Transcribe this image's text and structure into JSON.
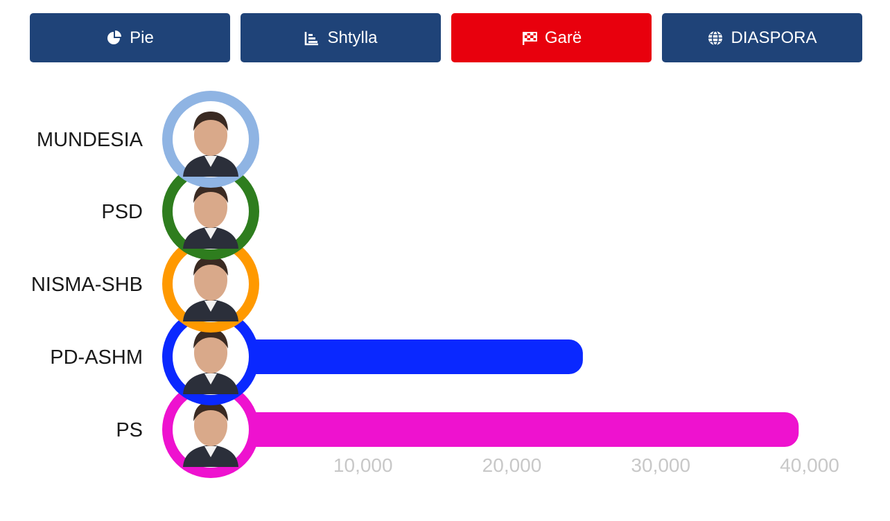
{
  "tabs": [
    {
      "label": "Pie",
      "icon": "pie-chart-icon",
      "color": "#1f4378"
    },
    {
      "label": "Shtylla",
      "icon": "bar-chart-icon",
      "color": "#1f4378"
    },
    {
      "label": "Garë",
      "icon": "checkered-flag-icon",
      "color": "#e8000d",
      "active": true
    },
    {
      "label": "DIASPORA",
      "icon": "globe-icon",
      "color": "#1f4378"
    }
  ],
  "chart_data": {
    "type": "bar",
    "orientation": "horizontal",
    "categories": [
      "MUNDESIA",
      "PSD",
      "NISMA-SHB",
      "PD-ASHM",
      "PS"
    ],
    "values": [
      0,
      0,
      0,
      25000,
      39500
    ],
    "colors": [
      "#8fb4e3",
      "#2e7d1e",
      "#ff9900",
      "#0a28ff",
      "#ee12cf"
    ],
    "xlim": [
      0,
      40000
    ],
    "xticks": [
      10000,
      20000,
      30000,
      40000
    ],
    "xtick_labels": [
      "10,000",
      "20,000",
      "30,000",
      "40,000"
    ],
    "grid": false,
    "avatars": "circular candidate portrait at the start of each bar, ringed in the party colour"
  }
}
